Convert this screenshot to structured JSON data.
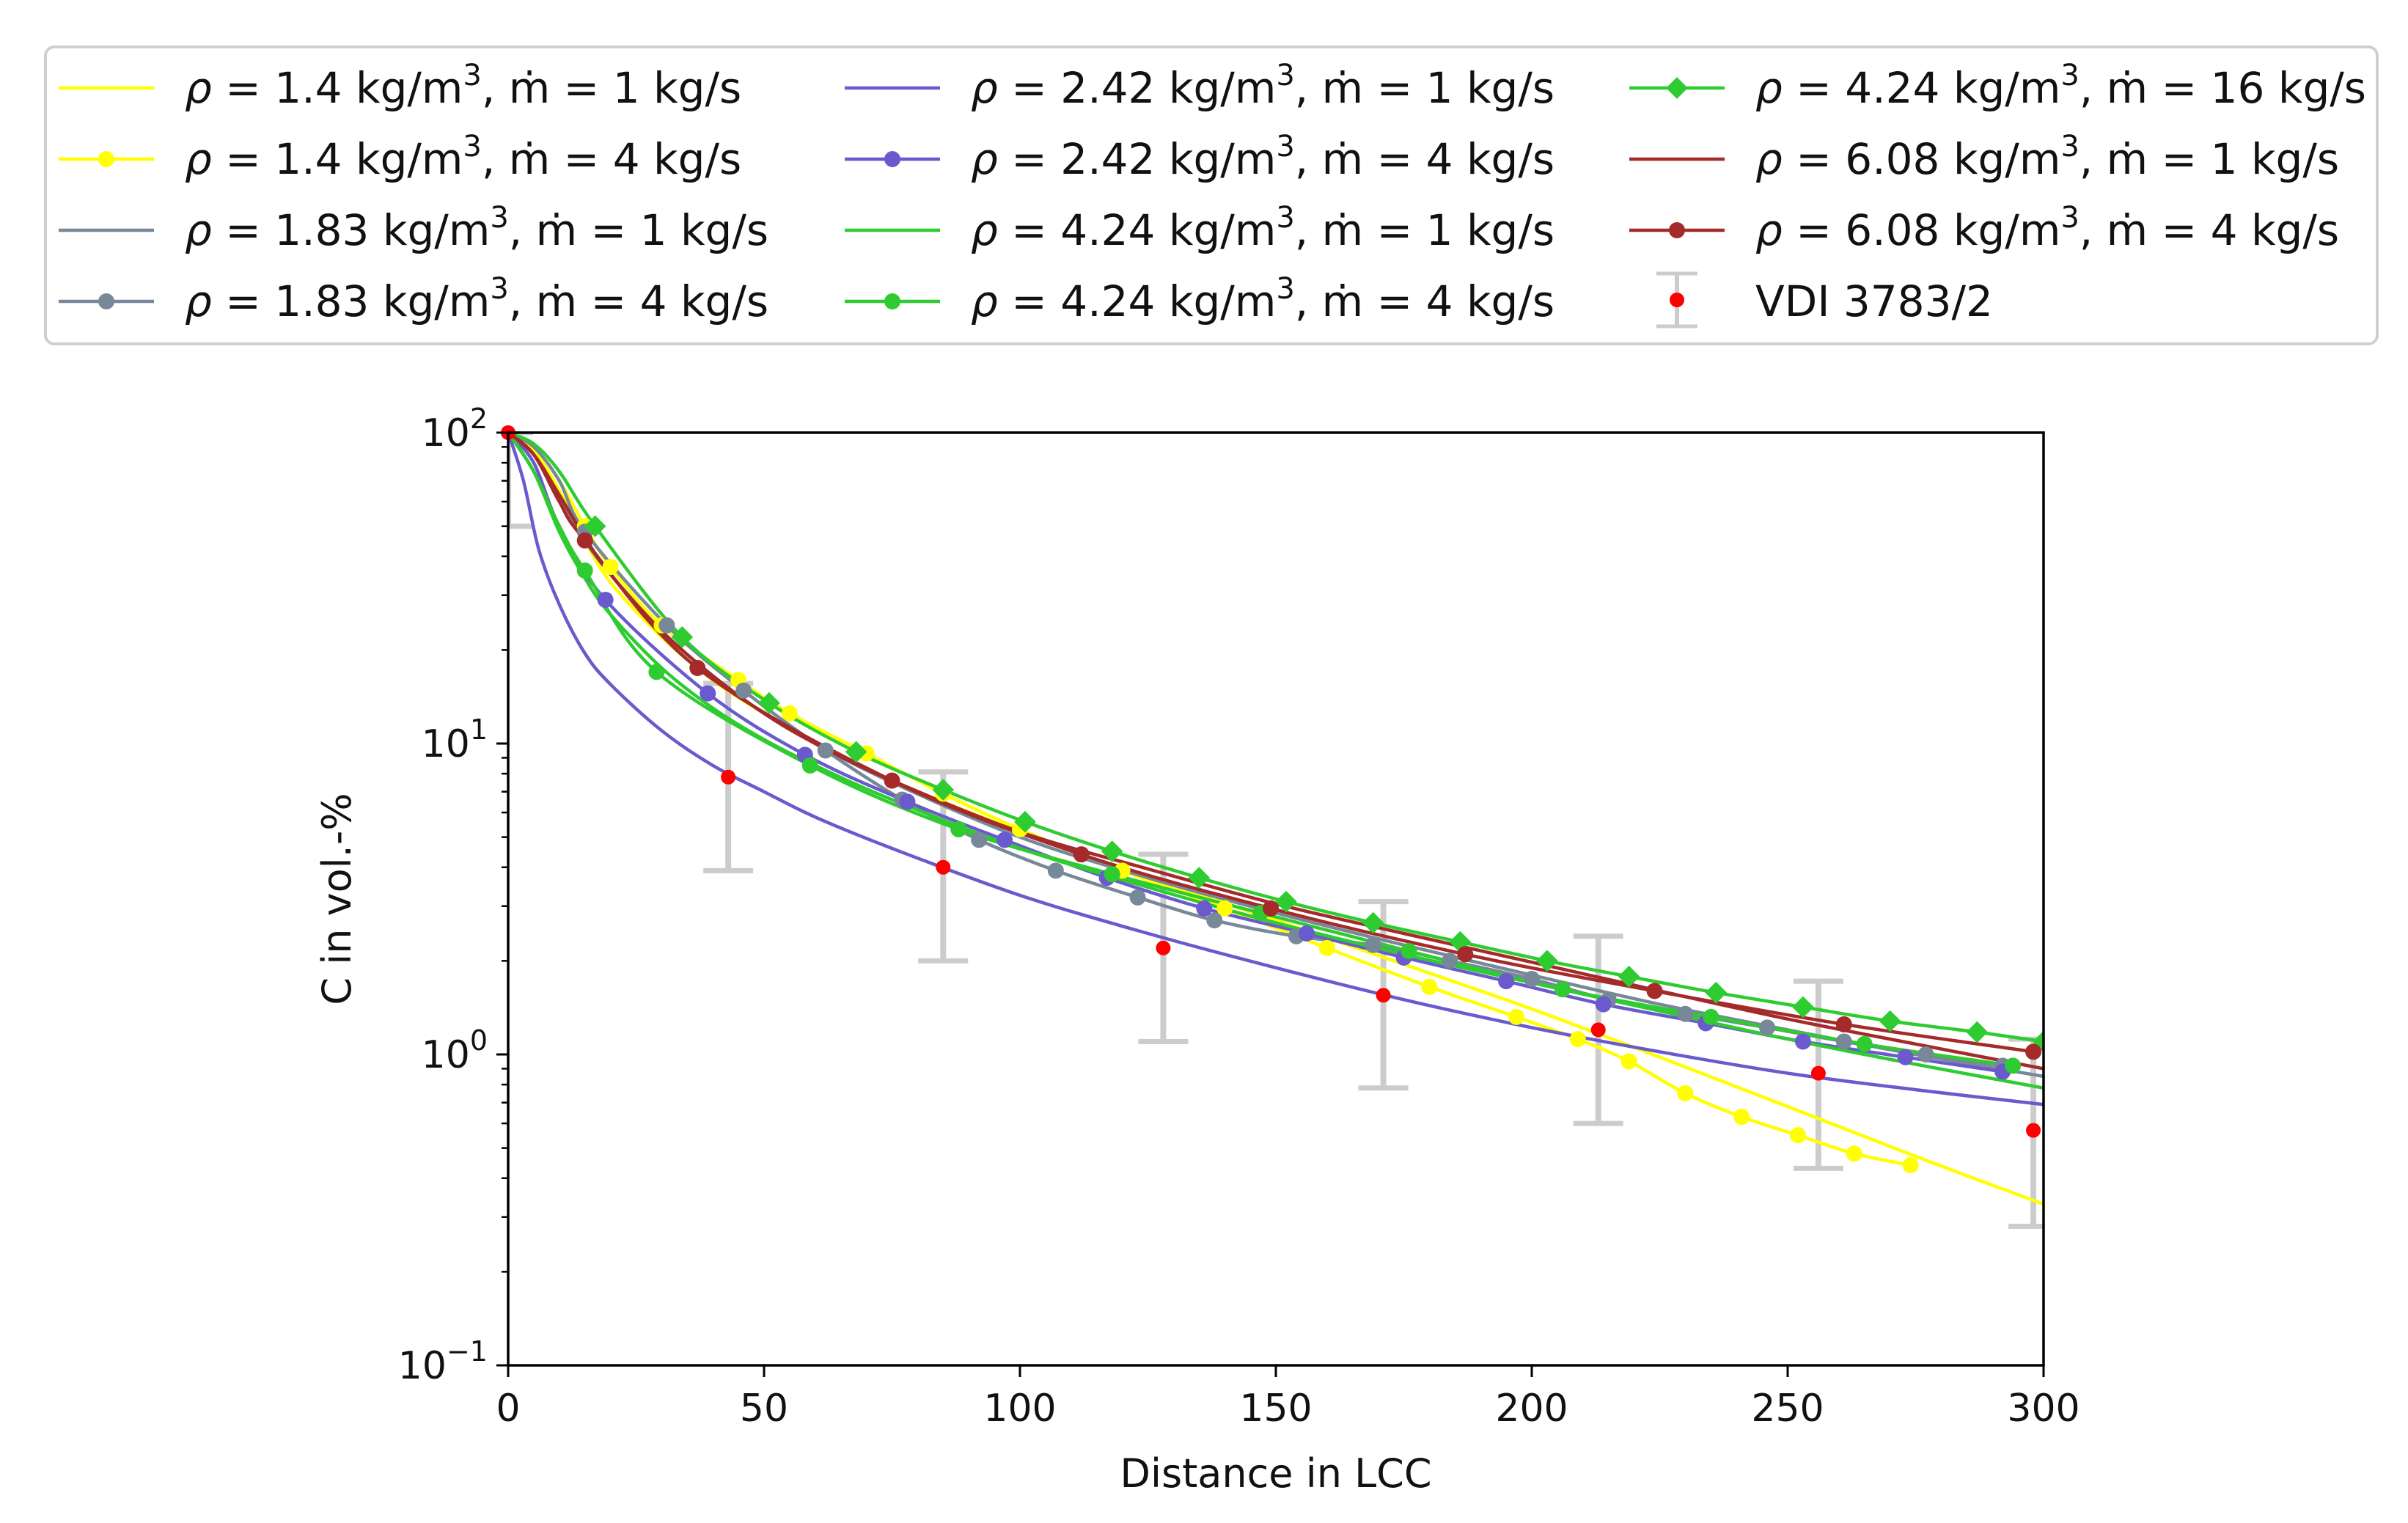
{
  "chart_data": {
    "type": "line",
    "title": "",
    "xlabel": "Distance in LCC",
    "ylabel": "C in vol.-%",
    "xlim": [
      0,
      300
    ],
    "ylim": [
      0.1,
      100
    ],
    "yscale": "log",
    "x_ticks": [
      0,
      50,
      100,
      150,
      200,
      250,
      300
    ],
    "x_tick_labels": [
      "0",
      "50",
      "100",
      "150",
      "200",
      "250",
      "300"
    ],
    "y_ticks": [
      0.1,
      1,
      10,
      100
    ],
    "y_tick_labels": [
      {
        "base": "10",
        "exp": "−1"
      },
      {
        "base": "10",
        "exp": "0"
      },
      {
        "base": "10",
        "exp": "1"
      },
      {
        "base": "10",
        "exp": "2"
      }
    ],
    "legend_position": "top, outside plot, 3 columns",
    "legend_labels": [
      {
        "sym": "ρ",
        "mid": " = 1.4 kg/m",
        "sup": "3",
        "tail": ", ṁ = 1 kg/s"
      },
      {
        "sym": "ρ",
        "mid": " = 1.4 kg/m",
        "sup": "3",
        "tail": ", ṁ = 4 kg/s"
      },
      {
        "sym": "ρ",
        "mid": " = 1.83 kg/m",
        "sup": "3",
        "tail": ", ṁ = 1 kg/s"
      },
      {
        "sym": "ρ",
        "mid": " = 1.83 kg/m",
        "sup": "3",
        "tail": ", ṁ = 4 kg/s"
      },
      {
        "sym": "ρ",
        "mid": " = 2.42 kg/m",
        "sup": "3",
        "tail": ", ṁ = 1 kg/s"
      },
      {
        "sym": "ρ",
        "mid": " = 2.42 kg/m",
        "sup": "3",
        "tail": ", ṁ = 4 kg/s"
      },
      {
        "sym": "ρ",
        "mid": " = 4.24 kg/m",
        "sup": "3",
        "tail": ", ṁ = 1 kg/s"
      },
      {
        "sym": "ρ",
        "mid": " = 4.24 kg/m",
        "sup": "3",
        "tail": ", ṁ = 4 kg/s"
      },
      {
        "sym": "ρ",
        "mid": " = 4.24 kg/m",
        "sup": "3",
        "tail": ", ṁ = 16 kg/s"
      },
      {
        "sym": "ρ",
        "mid": " = 6.08 kg/m",
        "sup": "3",
        "tail": ", ṁ = 1 kg/s"
      },
      {
        "sym": "ρ",
        "mid": " = 6.08 kg/m",
        "sup": "3",
        "tail": ", ṁ = 4 kg/s"
      },
      {
        "sym": "",
        "mid": "VDI 3783/2",
        "sup": "",
        "tail": ""
      }
    ],
    "series": [
      {
        "name": "ρ = 1.4 kg/m3, ṁ = 1 kg/s",
        "color": "#ffff00",
        "marker": "none",
        "x": [
          0,
          5,
          10,
          15,
          20,
          30,
          40,
          50,
          60,
          75,
          100,
          125,
          150,
          175,
          200,
          225,
          250,
          275,
          300
        ],
        "y": [
          100,
          88,
          65,
          45,
          33,
          22,
          16,
          12.5,
          10,
          7.6,
          5.2,
          3.7,
          2.7,
          1.95,
          1.4,
          0.98,
          0.68,
          0.47,
          0.33
        ]
      },
      {
        "name": "ρ = 1.4 kg/m3, ṁ = 4 kg/s",
        "color": "#ffff00",
        "marker": "circle",
        "x": [
          0,
          5,
          10,
          15,
          20,
          30,
          45,
          55,
          70,
          85,
          100,
          120,
          140,
          160,
          180,
          197,
          209,
          219,
          230,
          241,
          252,
          263,
          274
        ],
        "y": [
          100,
          90,
          70,
          50,
          37,
          24,
          16,
          12.5,
          9.3,
          6.9,
          5.3,
          3.9,
          2.95,
          2.2,
          1.65,
          1.32,
          1.12,
          0.95,
          0.75,
          0.63,
          0.55,
          0.48,
          0.44
        ]
      },
      {
        "name": "ρ = 1.83 kg/m3, ṁ = 1 kg/s",
        "color": "#778899",
        "marker": "none",
        "x": [
          0,
          5,
          10,
          15,
          20,
          30,
          40,
          50,
          60,
          75,
          100,
          125,
          150,
          175,
          200,
          225,
          250,
          275,
          300
        ],
        "y": [
          100,
          85,
          62,
          45,
          35,
          23,
          16.5,
          12.5,
          10,
          7.5,
          5.0,
          3.7,
          2.85,
          2.25,
          1.8,
          1.45,
          1.2,
          1.0,
          0.85
        ]
      },
      {
        "name": "ρ = 1.83 kg/m3, ṁ = 4 kg/s",
        "color": "#778899",
        "marker": "circle",
        "x": [
          0,
          5,
          10,
          15,
          31,
          46,
          62,
          77,
          92,
          107,
          123,
          138,
          154,
          169,
          184,
          200,
          215,
          230,
          246,
          261,
          277,
          292
        ],
        "y": [
          100,
          90,
          70,
          48,
          24,
          14.8,
          9.5,
          6.6,
          4.9,
          3.9,
          3.2,
          2.7,
          2.4,
          2.25,
          2.0,
          1.75,
          1.5,
          1.35,
          1.22,
          1.1,
          1.0,
          0.92
        ]
      },
      {
        "name": "ρ = 2.42 kg/m3, ṁ = 1 kg/s",
        "color": "#6a5acd",
        "marker": "none",
        "x": [
          0,
          3,
          6,
          10,
          15,
          20,
          30,
          40,
          50,
          60,
          75,
          100,
          125,
          150,
          175,
          200,
          225,
          250,
          275,
          300
        ],
        "y": [
          100,
          70,
          42,
          28,
          19.5,
          15.5,
          11,
          8.5,
          7.0,
          5.8,
          4.6,
          3.25,
          2.45,
          1.9,
          1.5,
          1.22,
          1.02,
          0.87,
          0.77,
          0.69
        ]
      },
      {
        "name": "ρ = 2.42 kg/m3, ṁ = 4 kg/s",
        "color": "#6a5acd",
        "marker": "circle",
        "x": [
          0,
          5,
          10,
          19,
          39,
          58,
          78,
          97,
          117,
          136,
          156,
          175,
          195,
          214,
          234,
          253,
          273,
          292
        ],
        "y": [
          100,
          80,
          50,
          29,
          14.5,
          9.2,
          6.5,
          4.9,
          3.7,
          2.95,
          2.45,
          2.05,
          1.72,
          1.45,
          1.26,
          1.1,
          0.98,
          0.88
        ]
      },
      {
        "name": "ρ = 4.24 kg/m3, ṁ = 1 kg/s",
        "color": "#2ecc30",
        "marker": "none",
        "x": [
          0,
          5,
          10,
          15,
          20,
          30,
          40,
          50,
          60,
          75,
          100,
          125,
          150,
          175,
          200,
          225,
          250,
          275,
          300
        ],
        "y": [
          100,
          75,
          48,
          34,
          26,
          17.5,
          13,
          10.3,
          8.5,
          6.6,
          4.6,
          3.45,
          2.65,
          2.1,
          1.7,
          1.38,
          1.12,
          0.93,
          0.78
        ]
      },
      {
        "name": "ρ = 4.24 kg/m3, ṁ = 4 kg/s",
        "color": "#2ecc30",
        "marker": "circle",
        "x": [
          0,
          5,
          10,
          15,
          29,
          59,
          88,
          118,
          147,
          176,
          206,
          235,
          265,
          294
        ],
        "y": [
          100,
          75,
          50,
          36,
          17,
          8.5,
          5.3,
          3.8,
          2.85,
          2.15,
          1.62,
          1.32,
          1.08,
          0.92
        ]
      },
      {
        "name": "ρ = 4.24 kg/m3, ṁ = 16 kg/s",
        "color": "#2ecc30",
        "marker": "diamond",
        "x": [
          0,
          5,
          10,
          17,
          34,
          51,
          68,
          85,
          101,
          118,
          135,
          152,
          169,
          186,
          203,
          219,
          236,
          253,
          270,
          287,
          300
        ],
        "y": [
          100,
          92,
          75,
          50,
          22,
          13.5,
          9.4,
          7.1,
          5.6,
          4.5,
          3.7,
          3.1,
          2.65,
          2.3,
          2.0,
          1.78,
          1.58,
          1.42,
          1.28,
          1.18,
          1.1
        ]
      },
      {
        "name": "ρ = 6.08 kg/m3, ṁ = 1 kg/s",
        "color": "#a52a2a",
        "marker": "none",
        "x": [
          0,
          5,
          10,
          15,
          20,
          30,
          40,
          50,
          60,
          75,
          100,
          125,
          150,
          175,
          200,
          225,
          250,
          275,
          300
        ],
        "y": [
          100,
          85,
          63,
          46,
          35,
          23,
          16.5,
          12.5,
          10,
          7.6,
          5.2,
          3.95,
          3.05,
          2.45,
          1.98,
          1.6,
          1.3,
          1.08,
          0.9
        ]
      },
      {
        "name": "ρ = 6.08 kg/m3, ṁ = 4 kg/s",
        "color": "#a52a2a",
        "marker": "circle",
        "x": [
          0,
          5,
          10,
          15,
          37,
          75,
          112,
          149,
          187,
          224,
          261,
          298
        ],
        "y": [
          100,
          85,
          60,
          45,
          17.5,
          7.6,
          4.4,
          2.95,
          2.1,
          1.6,
          1.25,
          1.02
        ]
      }
    ],
    "reference": {
      "name": "VDI 3783/2",
      "color": "#ff0000",
      "errorbar_color": "#cccccc",
      "x": [
        0,
        43,
        85,
        128,
        171,
        213,
        256,
        298
      ],
      "y": [
        100,
        7.8,
        4.0,
        2.2,
        1.55,
        1.2,
        0.87,
        0.57
      ],
      "y_low": [
        50,
        3.9,
        2.0,
        1.1,
        0.78,
        0.6,
        0.43,
        0.28
      ],
      "y_high": [
        100,
        15.6,
        8.1,
        4.4,
        3.1,
        2.4,
        1.72,
        1.12
      ]
    }
  }
}
